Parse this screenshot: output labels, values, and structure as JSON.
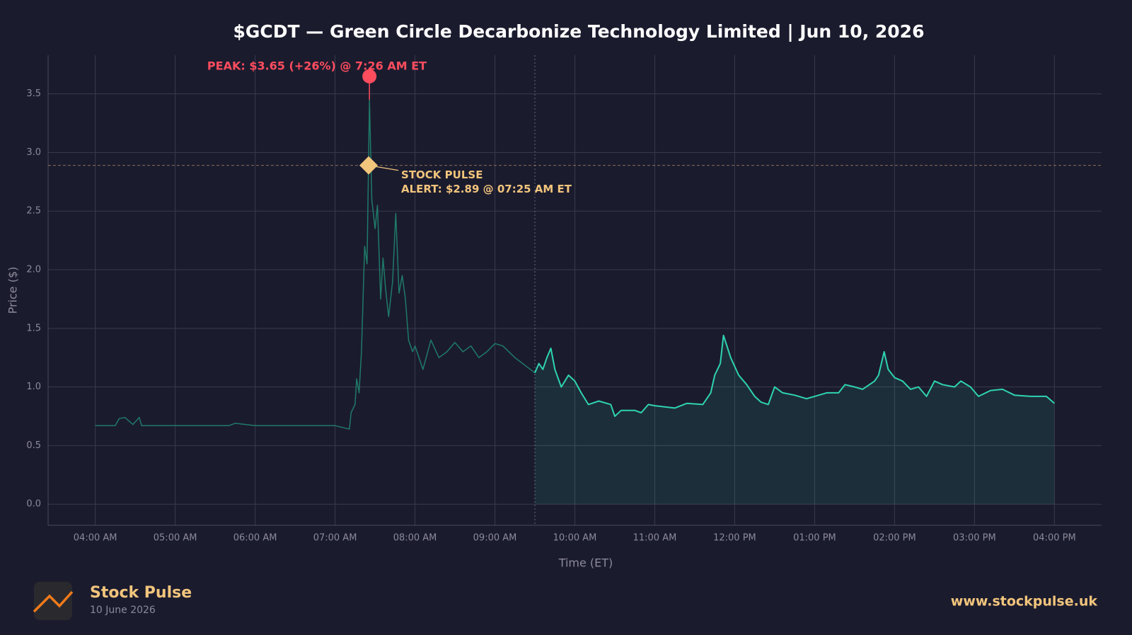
{
  "chart_data": {
    "type": "line",
    "title": "$GCDT — Green Circle Decarbonize Technology Limited  |  Jun 10, 2026",
    "x_label": "Time (ET)",
    "y_label": "Price ($)",
    "xlim": [
      3.41,
      16.59
    ],
    "ylim": [
      -0.18,
      3.83
    ],
    "xticks": [
      {
        "value": 4,
        "label": "04:00 AM"
      },
      {
        "value": 5,
        "label": "05:00 AM"
      },
      {
        "value": 6,
        "label": "06:00 AM"
      },
      {
        "value": 7,
        "label": "07:00 AM"
      },
      {
        "value": 8,
        "label": "08:00 AM"
      },
      {
        "value": 9,
        "label": "09:00 AM"
      },
      {
        "value": 10,
        "label": "10:00 AM"
      },
      {
        "value": 11,
        "label": "11:00 AM"
      },
      {
        "value": 12,
        "label": "12:00 PM"
      },
      {
        "value": 13,
        "label": "01:00 PM"
      },
      {
        "value": 14,
        "label": "02:00 PM"
      },
      {
        "value": 15,
        "label": "03:00 PM"
      },
      {
        "value": 16,
        "label": "04:00 PM"
      }
    ],
    "yticks": [
      {
        "value": 0,
        "label": "0.0"
      },
      0.5,
      {
        "value": 1,
        "label": "1.0"
      },
      1.5,
      {
        "value": 2,
        "label": "2.0"
      },
      2.5,
      {
        "value": 3,
        "label": "3.0"
      },
      3.5
    ],
    "grid": true,
    "series": [
      {
        "color": "#1f7a68",
        "fill": false,
        "x": [
          4.0,
          4.25,
          4.3,
          4.37,
          4.47,
          4.55,
          4.58,
          5.0,
          5.5,
          5.67,
          5.75,
          6.0,
          6.5,
          7.0,
          7.18,
          7.2,
          7.25,
          7.27,
          7.3,
          7.33,
          7.37,
          7.4,
          7.43,
          7.46,
          7.5,
          7.53,
          7.57,
          7.6,
          7.63,
          7.67,
          7.72,
          7.76,
          7.8,
          7.84,
          7.88,
          7.92,
          7.97,
          8.0,
          8.1,
          8.2,
          8.3,
          8.4,
          8.5,
          8.6,
          8.7,
          8.8,
          8.9,
          9.0,
          9.1,
          9.25,
          9.5
        ],
        "values": [
          0.67,
          0.67,
          0.73,
          0.74,
          0.68,
          0.74,
          0.67,
          0.67,
          0.67,
          0.67,
          0.69,
          0.67,
          0.67,
          0.67,
          0.64,
          0.78,
          0.85,
          1.07,
          0.95,
          1.3,
          2.2,
          2.05,
          3.45,
          2.6,
          2.35,
          2.55,
          1.75,
          2.1,
          1.85,
          1.6,
          1.9,
          2.48,
          1.8,
          1.95,
          1.75,
          1.4,
          1.3,
          1.35,
          1.15,
          1.4,
          1.25,
          1.3,
          1.38,
          1.3,
          1.35,
          1.25,
          1.3,
          1.37,
          1.35,
          1.25,
          1.12
        ]
      },
      {
        "color": "#2ed3b0",
        "fill": true,
        "x": [
          9.5,
          9.55,
          9.6,
          9.65,
          9.7,
          9.75,
          9.83,
          9.92,
          10.0,
          10.08,
          10.17,
          10.3,
          10.45,
          10.5,
          10.58,
          10.75,
          10.83,
          10.92,
          11.0,
          11.25,
          11.4,
          11.6,
          11.7,
          11.75,
          11.82,
          11.86,
          11.95,
          12.05,
          12.15,
          12.25,
          12.33,
          12.42,
          12.5,
          12.6,
          12.75,
          12.9,
          13.0,
          13.15,
          13.3,
          13.38,
          13.5,
          13.6,
          13.75,
          13.8,
          13.87,
          13.92,
          14.0,
          14.1,
          14.2,
          14.3,
          14.4,
          14.5,
          14.6,
          14.75,
          14.83,
          14.95,
          15.05,
          15.2,
          15.35,
          15.5,
          15.7,
          15.9,
          16.0
        ],
        "values": [
          1.12,
          1.2,
          1.15,
          1.25,
          1.33,
          1.15,
          1.0,
          1.1,
          1.05,
          0.95,
          0.85,
          0.88,
          0.85,
          0.75,
          0.8,
          0.8,
          0.78,
          0.85,
          0.84,
          0.82,
          0.86,
          0.85,
          0.95,
          1.1,
          1.2,
          1.44,
          1.25,
          1.1,
          1.02,
          0.92,
          0.87,
          0.85,
          1.0,
          0.95,
          0.93,
          0.9,
          0.92,
          0.95,
          0.95,
          1.02,
          1.0,
          0.98,
          1.05,
          1.1,
          1.3,
          1.15,
          1.08,
          1.05,
          0.98,
          1.0,
          0.92,
          1.05,
          1.02,
          1.0,
          1.05,
          1.0,
          0.92,
          0.97,
          0.98,
          0.93,
          0.92,
          0.92,
          0.86
        ]
      }
    ],
    "market_open": 9.5,
    "peak": {
      "x": 7.43,
      "y": 3.65,
      "stem_to": 3.45,
      "color": "#ff4d5e",
      "label": "PEAK: $3.65 (+26%) @ 7:26 AM ET"
    },
    "alert": {
      "x": 7.42,
      "y": 2.89,
      "color": "#f2c57c",
      "label_lines": [
        "STOCK PULSE",
        "ALERT: $2.89 @ 07:25 AM ET"
      ]
    }
  },
  "footer": {
    "brand": "Stock Pulse",
    "date": "10 June 2026",
    "url": "www.stockpulse.uk"
  }
}
